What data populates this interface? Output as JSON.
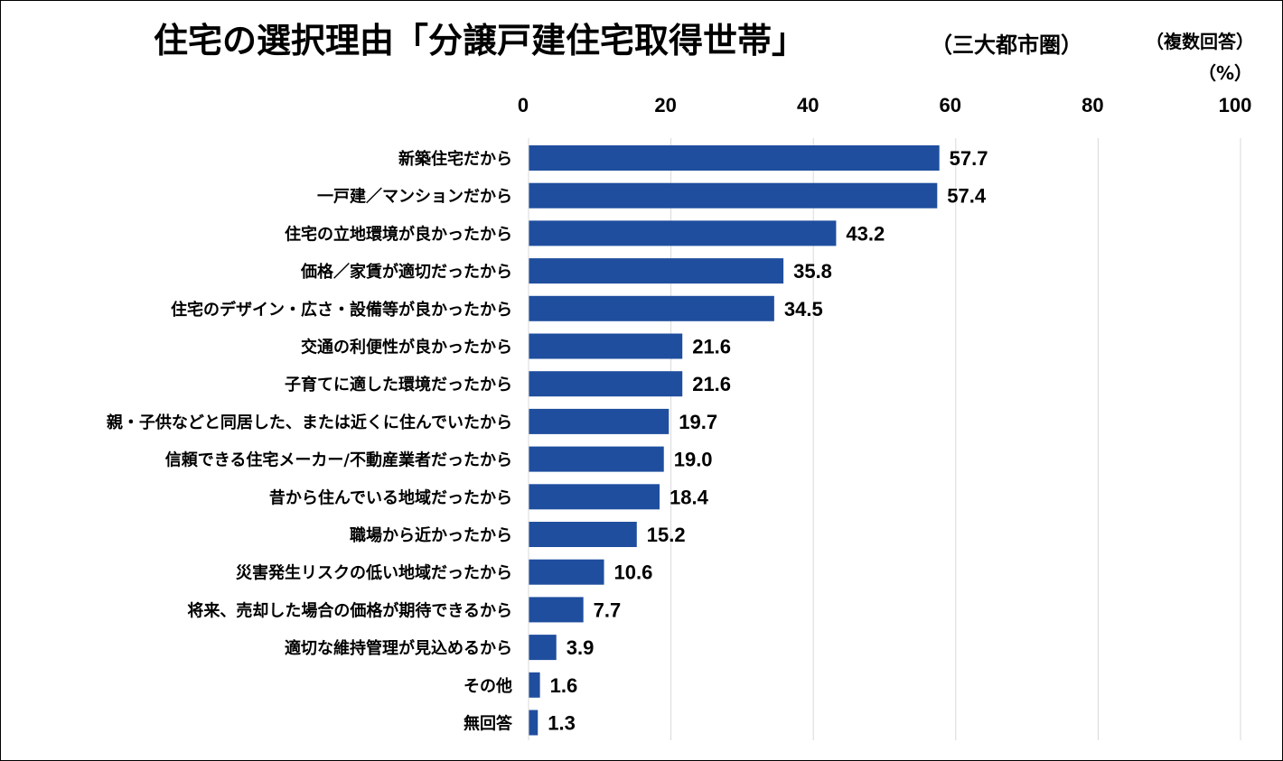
{
  "title": "住宅の選択理由「分譲戸建住宅取得世帯」",
  "subtitle": "（三大都市圏）",
  "note": "（複数回答）",
  "unit": "（%）",
  "colors": {
    "bar": "#1f4e9e",
    "grid": "#d9d9d9",
    "axis": "#000000"
  },
  "chart_data": {
    "type": "bar",
    "orientation": "horizontal",
    "categories": [
      "新築住宅だから",
      "一戸建／マンションだから",
      "住宅の立地環境が良かったから",
      "価格／家賃が適切だったから",
      "住宅のデザイン・広さ・設備等が良かったから",
      "交通の利便性が良かったから",
      "子育てに適した環境だったから",
      "親・子供などと同居した、または近くに住んでいたから",
      "信頼できる住宅メーカー/不動産業者だったから",
      "昔から住んでいる地域だったから",
      "職場から近かったから",
      "災害発生リスクの低い地域だったから",
      "将来、売却した場合の価格が期待できるから",
      "適切な維持管理が見込めるから",
      "その他",
      "無回答"
    ],
    "values": [
      57.7,
      57.4,
      43.2,
      35.8,
      34.5,
      21.6,
      21.6,
      19.7,
      19.0,
      18.4,
      15.2,
      10.6,
      7.7,
      3.9,
      1.6,
      1.3
    ],
    "value_labels": [
      "57.7",
      "57.4",
      "43.2",
      "35.8",
      "34.5",
      "21.6",
      "21.6",
      "19.7",
      "19.0",
      "18.4",
      "15.2",
      "10.6",
      "7.7",
      "3.9",
      "1.6",
      "1.3"
    ],
    "xlim": [
      0,
      100
    ],
    "xticks": [
      "0",
      "20",
      "40",
      "60",
      "80",
      "100"
    ],
    "xtick_values": [
      0,
      20,
      40,
      60,
      80,
      100
    ],
    "grid": true,
    "axis_position": "top"
  }
}
